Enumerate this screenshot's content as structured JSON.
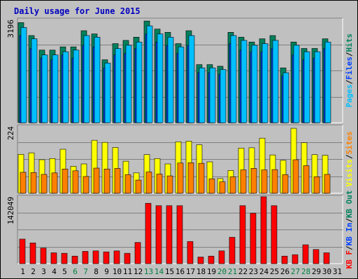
{
  "colors": {
    "background": "#c0c0c0",
    "plot": "#c0c0c0",
    "hits": "#00805c",
    "files": "#0040ff",
    "pages": "#00c0ff",
    "visits": "#ffff00",
    "sites": "#ff8000",
    "kbytes": "#ff0000",
    "title": "#0000c0",
    "weekend_label": "#008040",
    "weekday_label": "#000000"
  },
  "chart_data": {
    "type": "bar",
    "title": "Daily usage for June 2015",
    "categories": [
      "1",
      "2",
      "3",
      "4",
      "5",
      "6",
      "7",
      "8",
      "9",
      "10",
      "11",
      "12",
      "13",
      "14",
      "15",
      "16",
      "17",
      "18",
      "19",
      "20",
      "21",
      "22",
      "23",
      "24",
      "25",
      "26",
      "27",
      "28",
      "29",
      "30",
      "31"
    ],
    "weekend_days": [
      "6",
      "7",
      "13",
      "14",
      "20",
      "21",
      "27",
      "28"
    ],
    "panels": [
      {
        "id": "top",
        "max_label": "3196",
        "ylim": [
          0,
          3196
        ],
        "side_labels": [
          {
            "text": "Pages",
            "color": "#00c0ff"
          },
          {
            "text": "/",
            "color": "#000000"
          },
          {
            "text": "Files",
            "color": "#0040ff"
          },
          {
            "text": "/",
            "color": "#000000"
          },
          {
            "text": "Hits",
            "color": "#00805c"
          }
        ],
        "series": [
          {
            "name": "Hits",
            "values": [
              3100,
              2700,
              2250,
              2250,
              2350,
              2350,
              2850,
              2750,
              1950,
              2450,
              2550,
              2650,
              3150,
              2900,
              2800,
              2450,
              2850,
              1800,
              1800,
              1750,
              2800,
              2650,
              2500,
              2600,
              2700,
              1700,
              2500,
              2300,
              2300,
              2600,
              null
            ]
          },
          {
            "name": "Files",
            "values": [
              2700,
              2300,
              2000,
              1950,
              2100,
              2000,
              2400,
              2350,
              1700,
              2100,
              2150,
              2300,
              2750,
              2500,
              2400,
              2150,
              2400,
              1550,
              1550,
              1500,
              2450,
              2250,
              2200,
              2200,
              2300,
              1450,
              2100,
              1950,
              2000,
              2300,
              null
            ]
          },
          {
            "name": "Pages",
            "values": [
              2950,
              2600,
              2100,
              2100,
              2200,
              2250,
              2700,
              2650,
              1850,
              2300,
              2400,
              2500,
              3000,
              2750,
              2650,
              2350,
              2700,
              1700,
              1700,
              1650,
              2700,
              2550,
              2400,
              2450,
              2550,
              1550,
              2400,
              2200,
              2200,
              2500,
              null
            ]
          }
        ]
      },
      {
        "id": "middle",
        "max_label": "224",
        "ylim": [
          0,
          224
        ],
        "side_labels": [
          {
            "text": "Visits",
            "color": "#ffff00"
          },
          {
            "text": "/",
            "color": "#000000"
          },
          {
            "text": "Sites",
            "color": "#ff8000"
          }
        ],
        "series": [
          {
            "name": "Visits",
            "values": [
              130,
              135,
              112,
              116,
              147,
              90,
              98,
              177,
              170,
              153,
              107,
              68,
              129,
              116,
              98,
              172,
              174,
              162,
              105,
              49,
              76,
              151,
              152,
              184,
              128,
              110,
              217,
              169,
              129,
              127,
              null
            ]
          },
          {
            "name": "Sites",
            "values": [
              70,
              69,
              63,
              68,
              81,
              75,
              56,
              84,
              81,
              83,
              62,
              44,
              71,
              64,
              58,
              101,
              102,
              100,
              48,
              38,
              55,
              78,
              83,
              78,
              79,
              62,
              112,
              92,
              55,
              63,
              null
            ]
          }
        ]
      },
      {
        "id": "bottom",
        "max_label": "142049",
        "ylim": [
          0,
          142049
        ],
        "side_labels": [
          {
            "text": "KB F",
            "color": "#ff0000"
          },
          {
            "text": "/",
            "color": "#000000"
          },
          {
            "text": "KB In",
            "color": "#0040ff"
          },
          {
            "text": "/",
            "color": "#000000"
          },
          {
            "text": "KB Out",
            "color": "#00805c"
          }
        ],
        "series": [
          {
            "name": "KB F",
            "values": [
              52000,
              44000,
              33000,
              23000,
              22000,
              16000,
              26000,
              27000,
              25000,
              27000,
              22000,
              45000,
              128000,
              123000,
              123000,
              123000,
              47000,
              14000,
              16000,
              27000,
              56000,
              123000,
              107000,
              142000,
              123000,
              16000,
              19000,
              40000,
              30000,
              23000,
              null
            ]
          }
        ]
      }
    ]
  }
}
